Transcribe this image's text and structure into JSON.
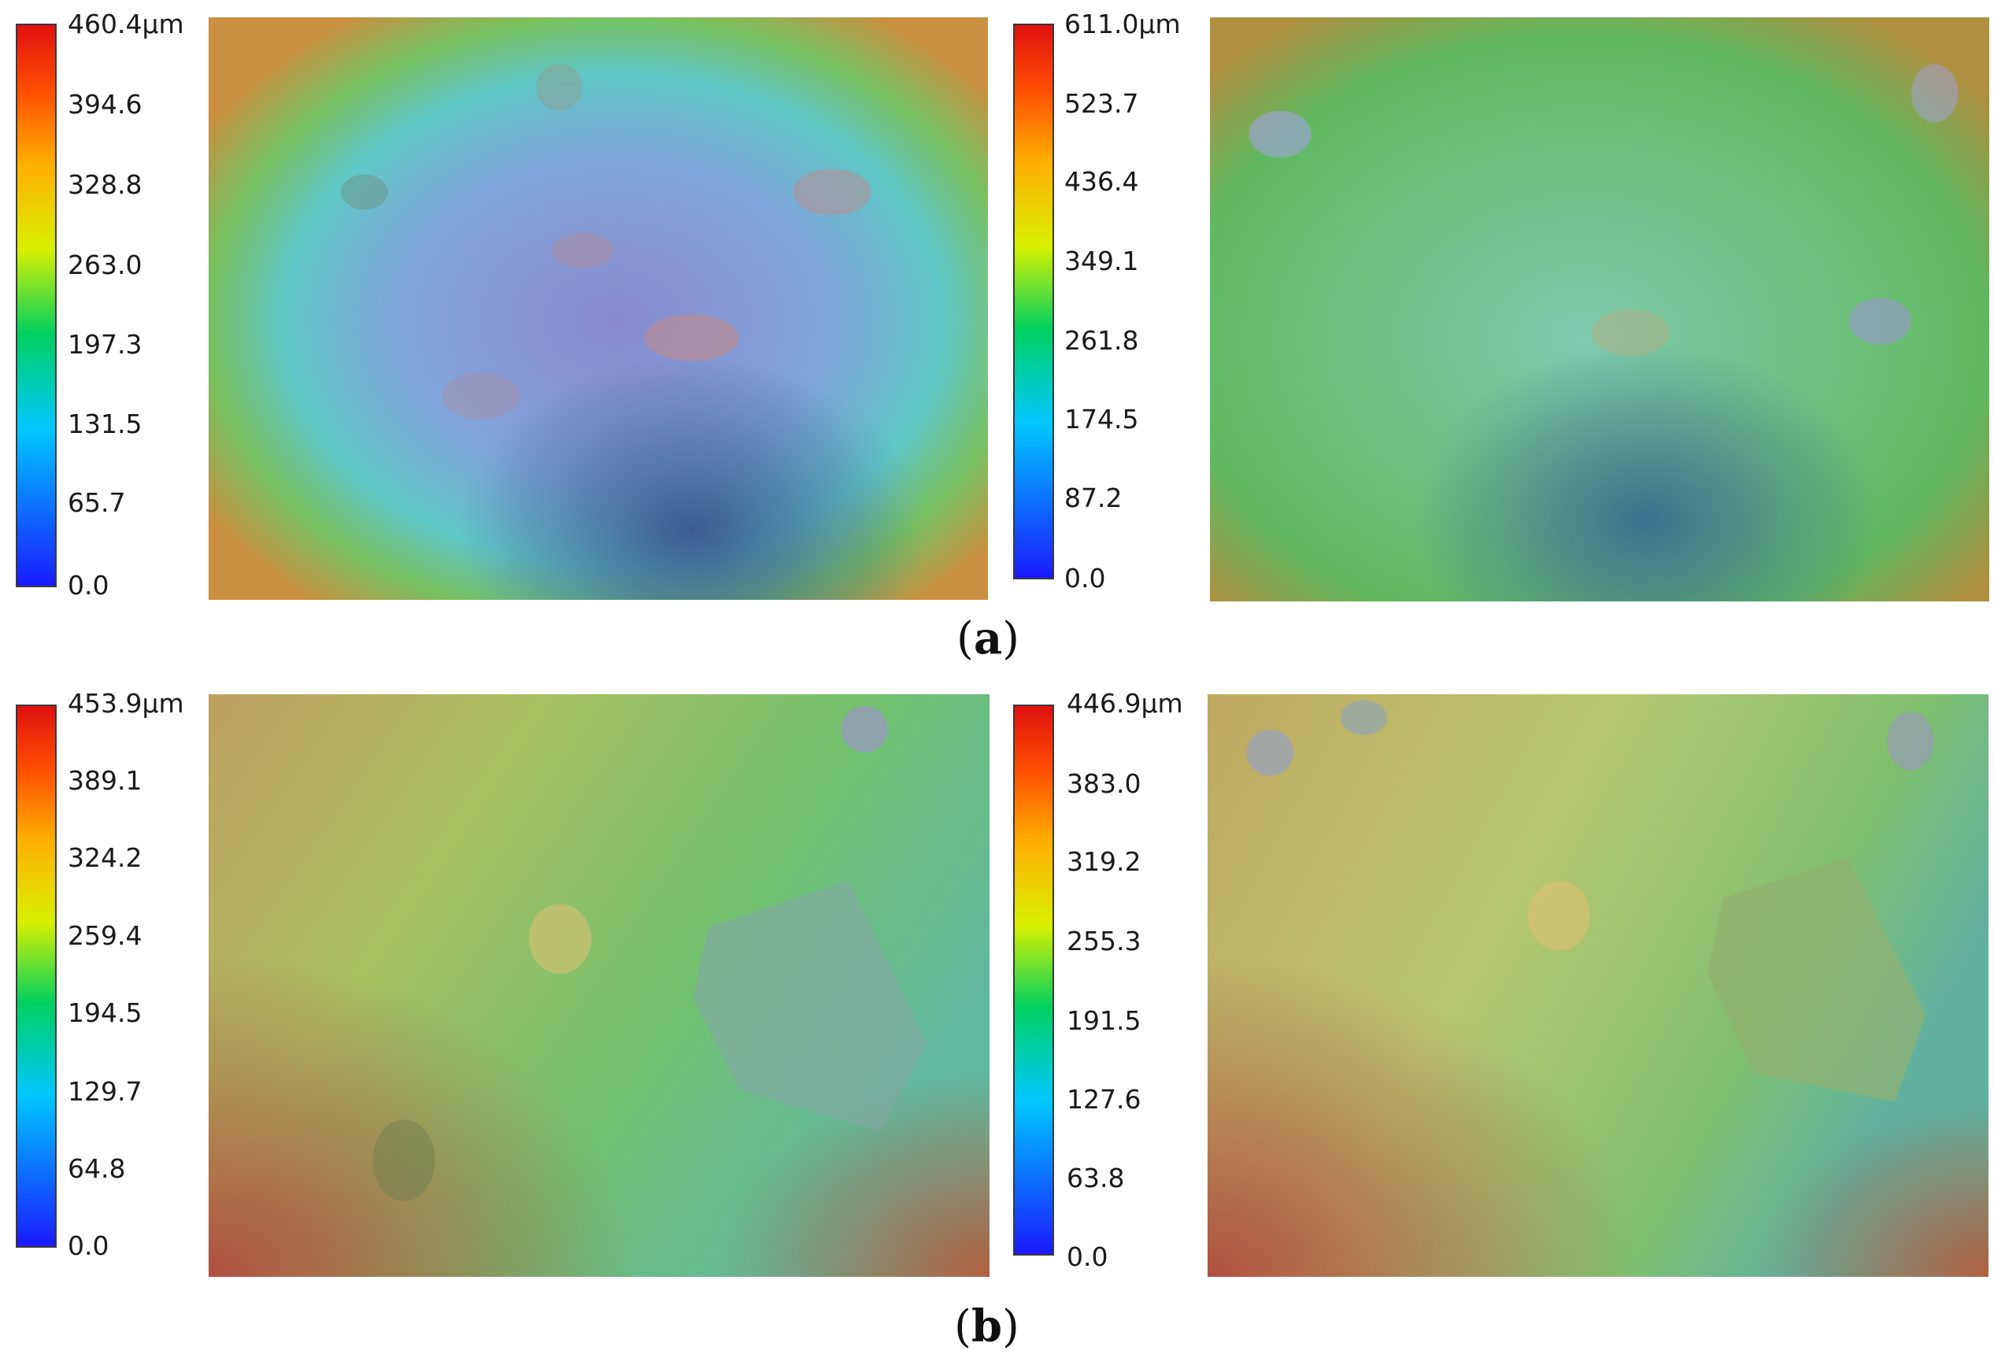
{
  "figure": {
    "captions": [
      "(a)",
      "(b)"
    ],
    "caption_letters": [
      "a",
      "b"
    ],
    "colormap_colors": [
      "#1a1aff",
      "#00c8ff",
      "#00d060",
      "#d8f000",
      "#ffb000",
      "#ff5000",
      "#e01010"
    ]
  },
  "scales": [
    {
      "ticks": [
        "460.4µm",
        "394.6",
        "328.8",
        "263.0",
        "197.3",
        "131.5",
        "65.7",
        "0.0"
      ]
    },
    {
      "ticks": [
        "611.0µm",
        "523.7",
        "436.4",
        "349.1",
        "261.8",
        "174.5",
        "87.2",
        "0.0"
      ]
    },
    {
      "ticks": [
        "453.9µm",
        "389.1",
        "324.2",
        "259.4",
        "194.5",
        "129.7",
        "64.8",
        "0.0"
      ]
    },
    {
      "ticks": [
        "446.9µm",
        "383.0",
        "319.2",
        "255.3",
        "191.5",
        "127.6",
        "63.8",
        "0.0"
      ]
    }
  ]
}
